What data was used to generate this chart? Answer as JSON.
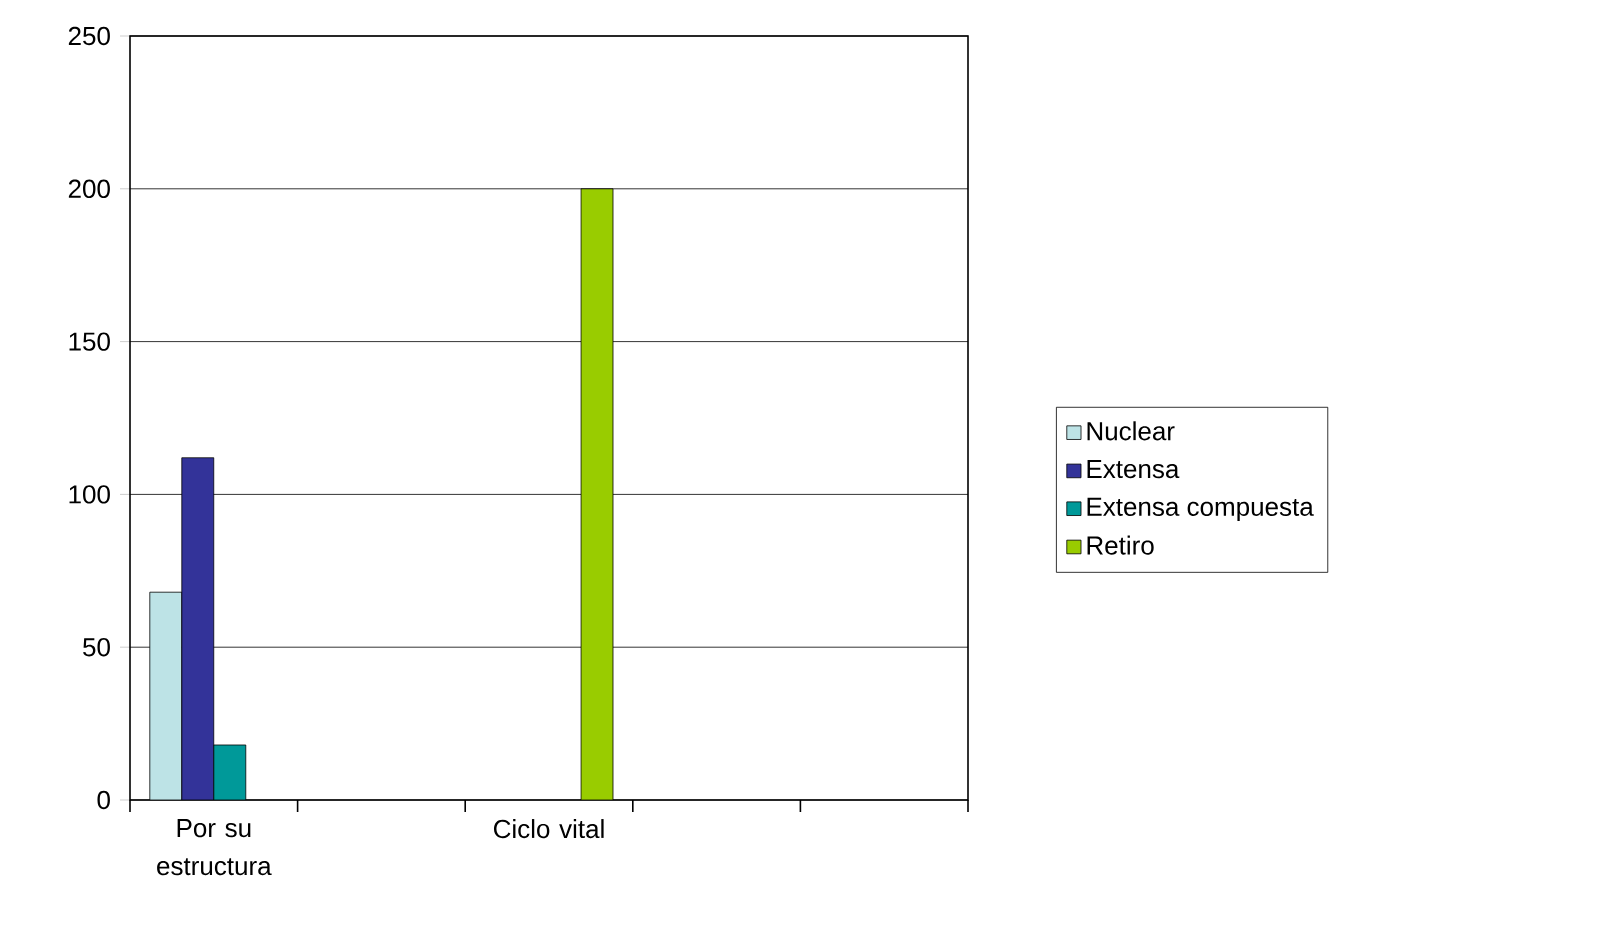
{
  "chart_data": {
    "type": "bar",
    "categories": [
      "Por su estructura",
      null,
      "Ciclo vital",
      null,
      null
    ],
    "series": [
      {
        "name": "Nuclear",
        "color": "#bde3e6",
        "values": [
          68,
          null,
          null,
          null,
          null
        ]
      },
      {
        "name": "Extensa",
        "color": "#333399",
        "values": [
          112,
          null,
          null,
          null,
          null
        ]
      },
      {
        "name": "Extensa compuesta",
        "color": "#009999",
        "values": [
          18,
          null,
          null,
          null,
          null
        ]
      },
      {
        "name": "Retiro",
        "color": "#99cc00",
        "values": [
          null,
          null,
          200,
          null,
          null
        ]
      }
    ],
    "ylim": [
      0,
      250
    ],
    "yticks": [
      0,
      50,
      100,
      150,
      200,
      250
    ],
    "grid": "y",
    "legend": "right"
  }
}
